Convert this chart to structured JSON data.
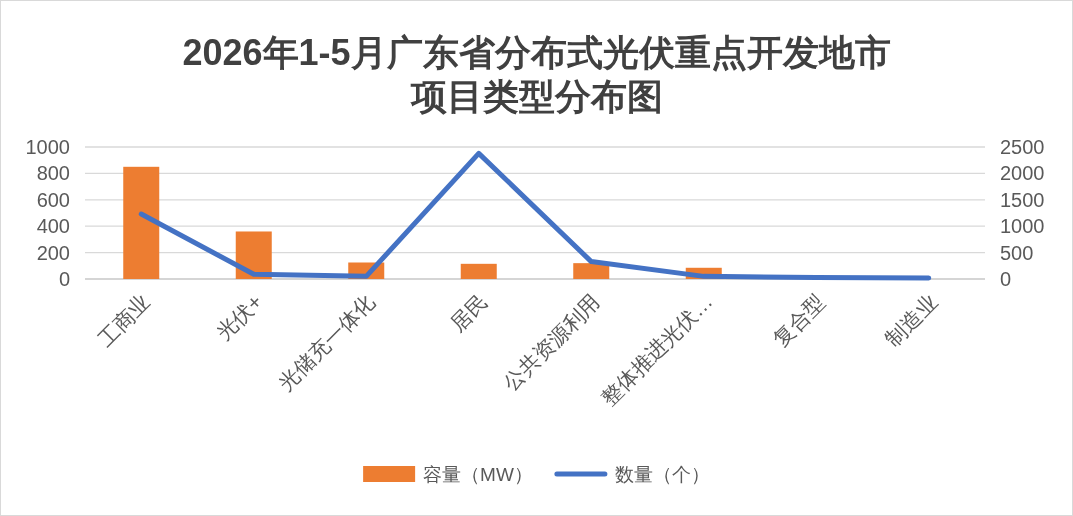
{
  "chart_data": {
    "type": "bar",
    "title": "2026年1-5月广东省分布式光伏重点开发地市项目类型分布图",
    "categories": [
      "工商业",
      "光伏+",
      "光储充一体化",
      "居民",
      "公共资源利用",
      "整体推进光伏…",
      "复合型",
      "制造业"
    ],
    "series": [
      {
        "name": "容量（MW）",
        "color": "#ed7d31",
        "values": [
          850,
          360,
          125,
          115,
          120,
          85,
          0,
          0
        ]
      },
      {
        "name": "数量（个）",
        "type": "line",
        "axis": "y2",
        "color": "#4472c4",
        "values": [
          1230,
          90,
          50,
          2380,
          330,
          50,
          30,
          20
        ]
      }
    ],
    "ylim": [
      0,
      1000
    ],
    "yticks": [
      0,
      200,
      400,
      600,
      800,
      1000
    ],
    "y2lim": [
      0,
      2500
    ],
    "y2ticks": [
      0,
      500,
      1000,
      1500,
      2000,
      2500
    ],
    "grid": "y",
    "legend": "bottom"
  }
}
